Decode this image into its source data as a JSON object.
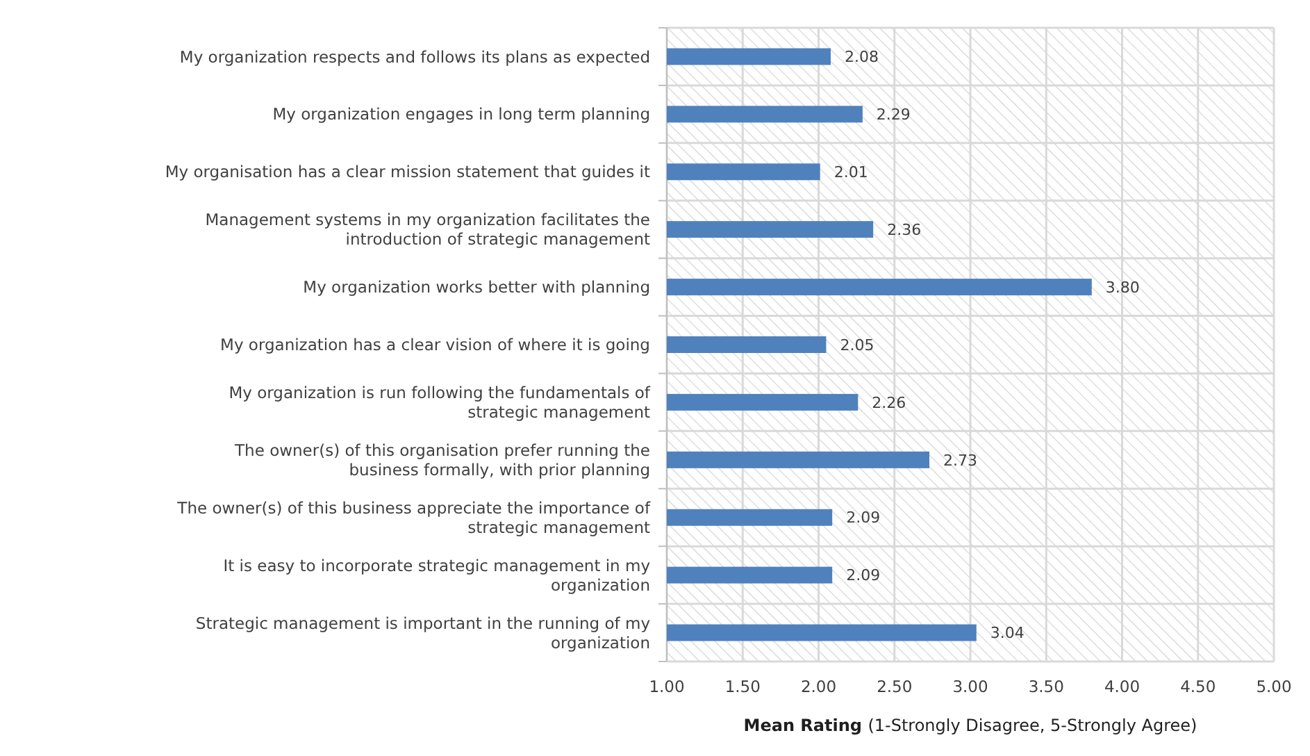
{
  "chart_data": {
    "type": "bar",
    "orientation": "horizontal",
    "xlabel": "Mean Rating (1-Strongly Disagree, 5-Strongly Agree)",
    "categories": [
      "My organization respects and follows its plans as expected",
      "My organization engages in long term planning",
      "My organisation has a clear mission statement that guides it",
      "Management systems in my organization facilitates the introduction of strategic management",
      "My organization works better with planning",
      "My organization has a clear vision of where it is going",
      "My organization is run following the fundamentals of strategic management",
      "The owner(s) of this organisation prefer running the business formally, with prior planning",
      "The owner(s) of this business appreciate the importance of strategic management",
      "It is easy to incorporate strategic management in my organization",
      "Strategic management is important in the running of my organization"
    ],
    "values": [
      2.08,
      2.29,
      2.01,
      2.36,
      3.8,
      2.05,
      2.26,
      2.73,
      2.09,
      2.09,
      3.04
    ],
    "value_labels": [
      "2.08",
      "2.29",
      "2.01",
      "2.36",
      "3.80",
      "2.05",
      "2.26",
      "2.73",
      "2.09",
      "2.09",
      "3.04"
    ],
    "color": "#4f81bd",
    "xlim": [
      1,
      5
    ],
    "xticks": [
      {
        "value": 1,
        "label": "1.00"
      },
      {
        "value": 1.5,
        "label": "1.50"
      },
      {
        "value": 2,
        "label": "2.00"
      },
      {
        "value": 2.5,
        "label": "2.50"
      },
      {
        "value": 3,
        "label": "3.00"
      },
      {
        "value": 3.5,
        "label": "3.50"
      },
      {
        "value": 4,
        "label": "4.00"
      },
      {
        "value": 4.5,
        "label": "4.50"
      },
      {
        "value": 5,
        "label": "5.00"
      }
    ],
    "grid": true
  }
}
